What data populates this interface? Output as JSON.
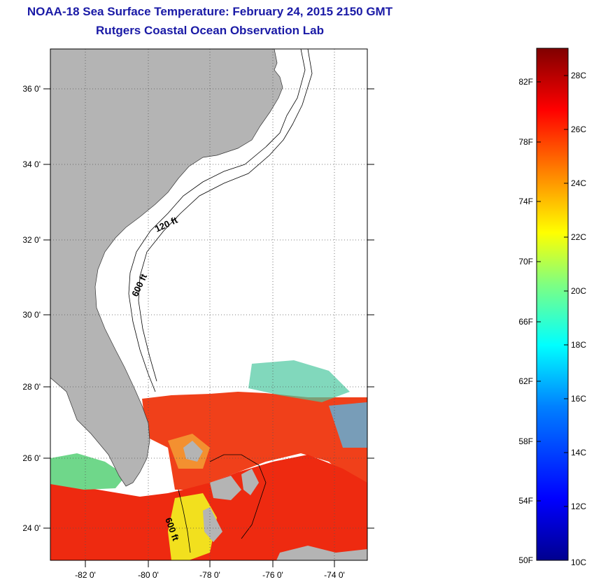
{
  "header": {
    "title": "NOAA-18 Sea Surface Temperature:  February 24, 2015 2150 GMT",
    "subtitle": "Rutgers Coastal Ocean Observation Lab"
  },
  "map": {
    "lat_labels": [
      "36 0'",
      "34 0'",
      "32 0'",
      "30 0'",
      "28 0'",
      "26 0'",
      "24 0'"
    ],
    "lon_labels": [
      "-82 0'",
      "-80 0'",
      "-78 0'",
      "-76 0'",
      "-74 0'"
    ],
    "contour_labels": [
      "120 ft",
      "600 ft",
      "600 ft"
    ],
    "colors": {
      "land": "#b4b4b4",
      "grid": "#555555"
    }
  },
  "colorbar": {
    "fahrenheit_labels": [
      "82F",
      "78F",
      "74F",
      "70F",
      "66F",
      "62F",
      "58F",
      "54F",
      "50F"
    ],
    "celsius_labels": [
      "28C",
      "26C",
      "24C",
      "22C",
      "20C",
      "18C",
      "16C",
      "14C",
      "12C",
      "10C"
    ],
    "range_c": [
      10,
      29
    ],
    "colors": [
      "#00008f",
      "#0000ff",
      "#0080ff",
      "#00ffff",
      "#80ff80",
      "#ffff00",
      "#ff8000",
      "#ff0000",
      "#800000"
    ]
  }
}
